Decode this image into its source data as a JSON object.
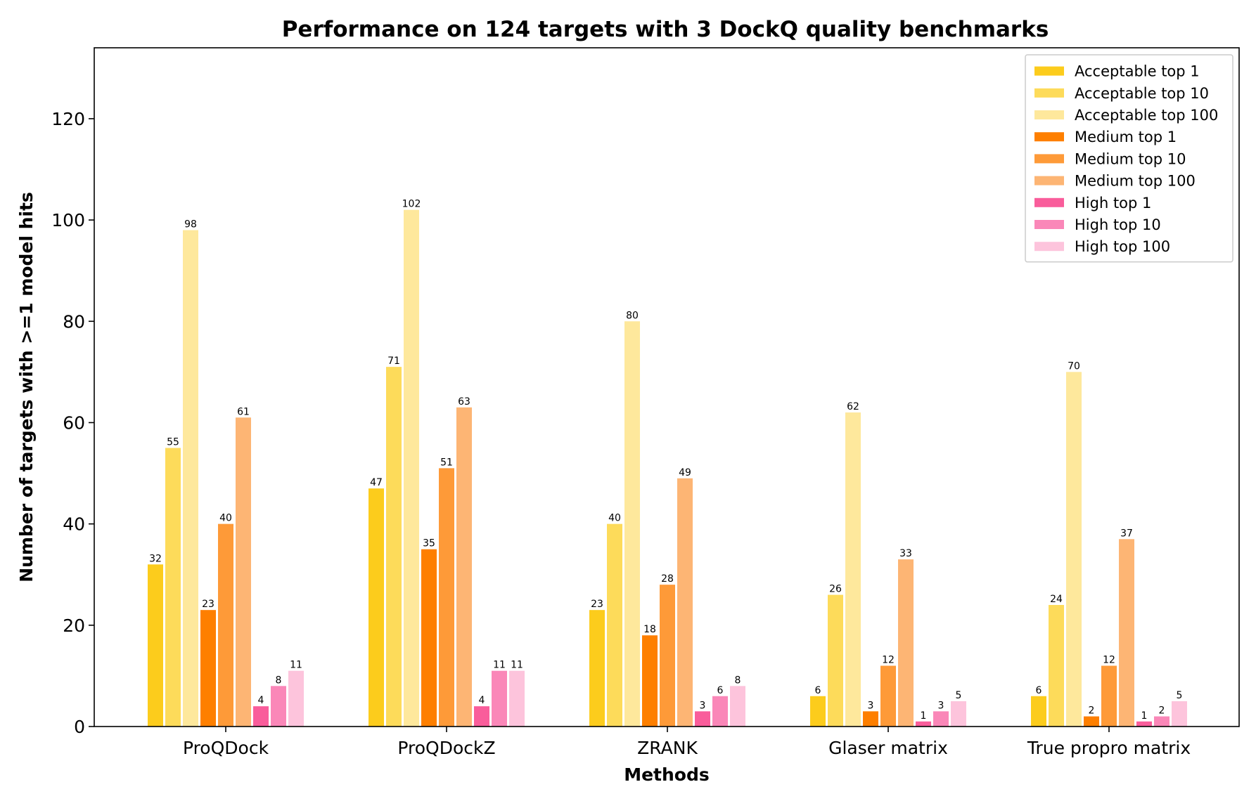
{
  "chart_data": {
    "type": "bar",
    "title": "Performance on 124 targets with 3 DockQ quality benchmarks",
    "xlabel": "Methods",
    "ylabel": "Number of targets with >=1 model hits",
    "ylim": [
      0,
      134
    ],
    "yticks": [
      0,
      20,
      40,
      60,
      80,
      100,
      120
    ],
    "grid": false,
    "legend_position": "top-right",
    "categories": [
      "ProQDock",
      "ProQDockZ",
      "ZRANK",
      "Glaser matrix",
      "True propro matrix"
    ],
    "series": [
      {
        "name": "Acceptable top 1",
        "color": "#FCCC1C",
        "values": [
          32,
          47,
          23,
          6,
          6
        ]
      },
      {
        "name": "Acceptable top 10",
        "color": "#FDDB5A",
        "values": [
          55,
          71,
          40,
          26,
          24
        ]
      },
      {
        "name": "Acceptable top 100",
        "color": "#FEE89C",
        "values": [
          98,
          102,
          80,
          62,
          70
        ]
      },
      {
        "name": "Medium top 1",
        "color": "#FE7F00",
        "values": [
          23,
          35,
          18,
          3,
          2
        ]
      },
      {
        "name": "Medium top 10",
        "color": "#FE9A38",
        "values": [
          40,
          51,
          28,
          12,
          12
        ]
      },
      {
        "name": "Medium top 100",
        "color": "#FDB574",
        "values": [
          61,
          63,
          49,
          33,
          37
        ]
      },
      {
        "name": "High top 1",
        "color": "#F95D9B",
        "values": [
          4,
          4,
          3,
          1,
          1
        ]
      },
      {
        "name": "High top 10",
        "color": "#FA87B8",
        "values": [
          8,
          11,
          6,
          3,
          2
        ]
      },
      {
        "name": "High top 100",
        "color": "#FDC4DC",
        "values": [
          11,
          11,
          8,
          5,
          5
        ]
      }
    ]
  }
}
